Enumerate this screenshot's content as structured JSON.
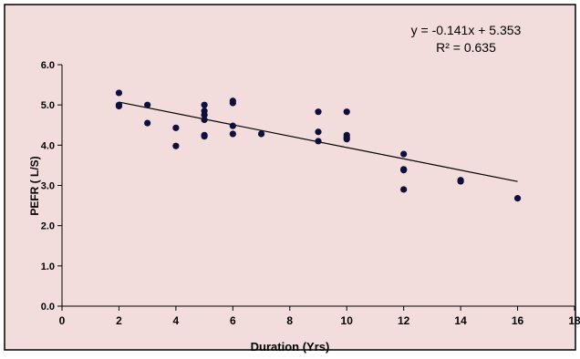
{
  "chart_data": {
    "type": "scatter",
    "xlabel": "Duration (Yrs)",
    "ylabel": "PEFR ( L/S)",
    "xlim": [
      0,
      18
    ],
    "ylim": [
      0,
      6
    ],
    "x_ticks": [
      "0",
      "2",
      "4",
      "6",
      "8",
      "10",
      "12",
      "14",
      "16",
      "18"
    ],
    "y_ticks": [
      "0.0",
      "1.0",
      "2.0",
      "3.0",
      "4.0",
      "5.0",
      "6.0"
    ],
    "grid": false,
    "legend": "none",
    "colors": {
      "plot_background": "#f2dcdc",
      "point": "#0f0f3c",
      "trendline": "#000000",
      "border": "#000000"
    },
    "points": [
      {
        "x": 2,
        "y": 5.3
      },
      {
        "x": 2,
        "y": 5.0
      },
      {
        "x": 2,
        "y": 4.97
      },
      {
        "x": 3,
        "y": 5.0
      },
      {
        "x": 3,
        "y": 4.55
      },
      {
        "x": 4,
        "y": 4.43
      },
      {
        "x": 4,
        "y": 3.98
      },
      {
        "x": 5,
        "y": 5.0
      },
      {
        "x": 5,
        "y": 4.85
      },
      {
        "x": 5,
        "y": 4.75
      },
      {
        "x": 5,
        "y": 4.63
      },
      {
        "x": 5,
        "y": 4.25
      },
      {
        "x": 5,
        "y": 4.22
      },
      {
        "x": 6,
        "y": 5.1
      },
      {
        "x": 6,
        "y": 5.05
      },
      {
        "x": 6,
        "y": 4.48
      },
      {
        "x": 6,
        "y": 4.28
      },
      {
        "x": 7,
        "y": 4.28
      },
      {
        "x": 9,
        "y": 4.83
      },
      {
        "x": 9,
        "y": 4.33
      },
      {
        "x": 9,
        "y": 4.1
      },
      {
        "x": 10,
        "y": 4.83
      },
      {
        "x": 10,
        "y": 4.25
      },
      {
        "x": 10,
        "y": 4.2
      },
      {
        "x": 10,
        "y": 4.15
      },
      {
        "x": 12,
        "y": 3.78
      },
      {
        "x": 12,
        "y": 3.4
      },
      {
        "x": 12,
        "y": 3.38
      },
      {
        "x": 12,
        "y": 2.9
      },
      {
        "x": 14,
        "y": 3.13
      },
      {
        "x": 14,
        "y": 3.1
      },
      {
        "x": 16,
        "y": 2.68
      }
    ],
    "trendline": {
      "slope": -0.141,
      "intercept": 5.353,
      "x_range": [
        2,
        16
      ]
    },
    "annotation": {
      "equation": "y = -0.141x + 5.353",
      "r_squared": "R² = 0.635"
    }
  }
}
